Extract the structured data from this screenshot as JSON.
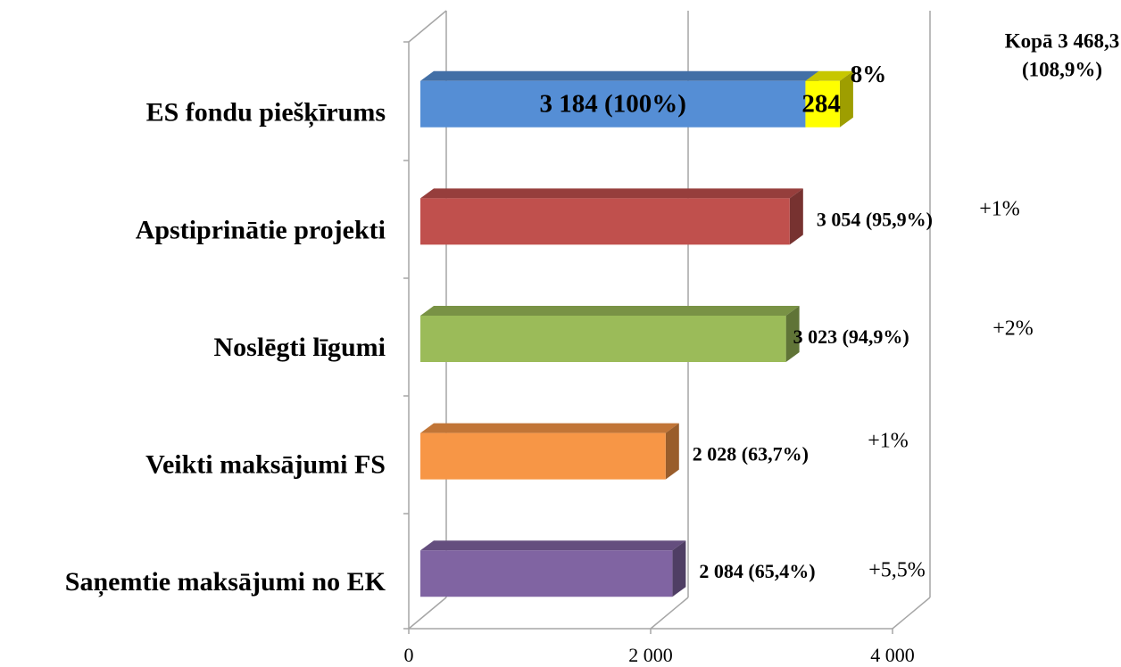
{
  "chart_data": {
    "type": "bar",
    "orientation": "horizontal",
    "stacked": true,
    "categories": [
      "ES fondu piešķīrums",
      "Apstiprinātie projekti",
      "Noslēgti līgumi",
      "Veikti maksājumi FS",
      "Saņemtie maksājumi no EK"
    ],
    "series": [
      {
        "colors": [
          "#558ed5",
          "#c0504d",
          "#9bbb59",
          "#f79646",
          "#8064a2"
        ],
        "values": [
          3184,
          3054,
          3023,
          2028,
          2084
        ],
        "value_labels": [
          "3 184 (100%)",
          "3 054 (95,9%)",
          "3 023 (94,9%)",
          "2 028 (63,7%)",
          "2 084 (65,4%)"
        ]
      },
      {
        "color": "#ffff00",
        "values": [
          284,
          null,
          null,
          null,
          null
        ]
      }
    ],
    "annotations": [
      "8%",
      "+1%",
      "+2%",
      "+1%",
      "+5,5%",
      "Kopā 3 468,3",
      "(108,9%)"
    ],
    "xlim": [
      0,
      4000
    ],
    "xticks": [
      0,
      {
        "value": 2000,
        "label": "2 000"
      },
      {
        "value": 4000,
        "label": "4 000"
      }
    ],
    "grid": true
  }
}
